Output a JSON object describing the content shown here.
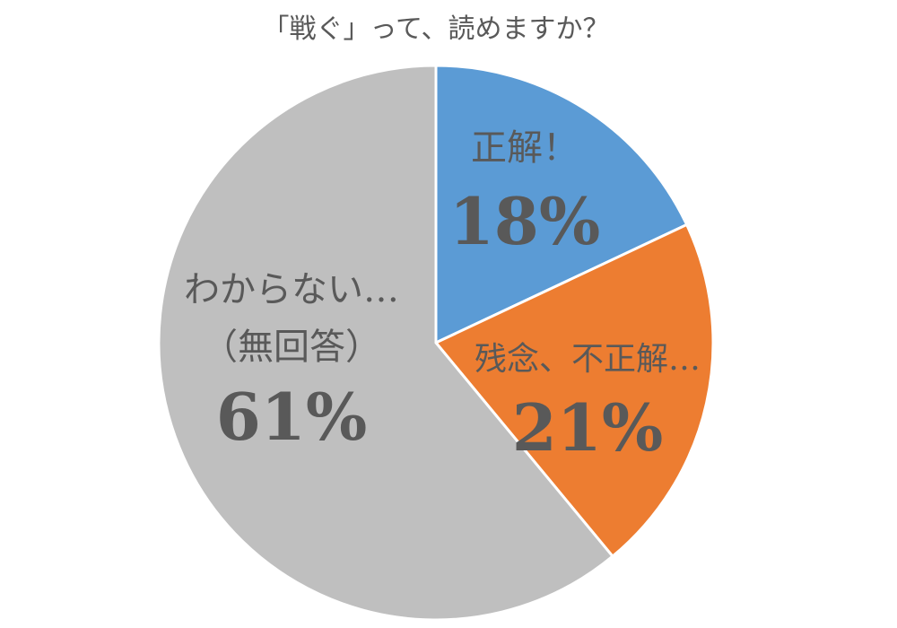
{
  "chart_data": {
    "type": "pie",
    "title": "「戦ぐ」って、読めますか？",
    "start_angle_deg": 0,
    "direction": "clockwise",
    "slices": [
      {
        "label": "正解！",
        "sublabel": "",
        "value": 18,
        "value_label": "18%",
        "color": "#5B9BD5"
      },
      {
        "label": "残念、不正解…",
        "sublabel": "",
        "value": 21,
        "value_label": "21%",
        "color": "#ED7D31"
      },
      {
        "label": "わからない…",
        "sublabel": "（無回答）",
        "value": 61,
        "value_label": "61%",
        "color": "#BFBFBF"
      }
    ],
    "legend": "none"
  }
}
